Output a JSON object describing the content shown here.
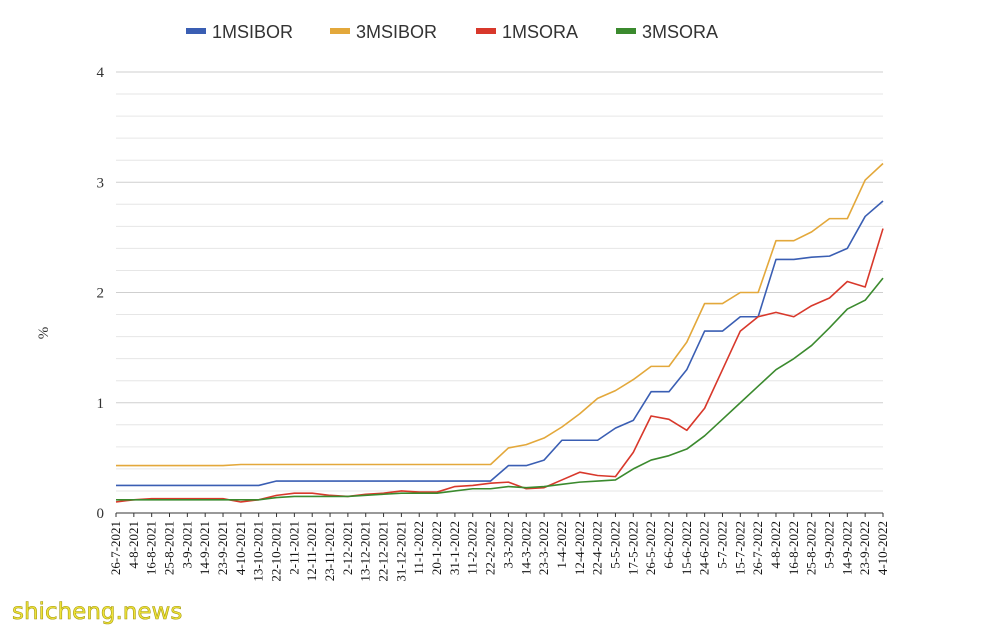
{
  "chart_data": {
    "type": "line",
    "ylabel": "%",
    "ylim": [
      0,
      4
    ],
    "yticks": [
      0,
      1,
      2,
      3,
      4
    ],
    "grid": true,
    "legend_position": "top",
    "x_tick_labels": [
      "26-7-2021",
      "4-8-2021",
      "16-8-2021",
      "25-8-2021",
      "3-9-2021",
      "14-9-2021",
      "23-9-2021",
      "4-10-2021",
      "13-10-2021",
      "22-10-2021",
      "2-11-2021",
      "12-11-2021",
      "23-11-2021",
      "2-12-2021",
      "13-12-2021",
      "22-12-2021",
      "31-12-2021",
      "11-1-2022",
      "20-1-2022",
      "31-1-2022",
      "11-2-2022",
      "22-2-2022",
      "3-3-2022",
      "14-3-2022",
      "23-3-2022",
      "1-4-2022",
      "12-4-2022",
      "22-4-2022",
      "5-5-2022",
      "17-5-2022",
      "26-5-2022",
      "6-6-2022",
      "15-6-2022",
      "24-6-2022",
      "5-7-2022",
      "15-7-2022",
      "26-7-2022",
      "4-8-2022",
      "16-8-2022",
      "25-8-2022",
      "5-9-2022",
      "14-9-2022",
      "23-9-2022",
      "4-10-2022"
    ],
    "series": [
      {
        "name": "1MSIBOR",
        "color": "#3a5eb3",
        "values": [
          0.25,
          0.25,
          0.25,
          0.25,
          0.25,
          0.25,
          0.25,
          0.25,
          0.25,
          0.29,
          0.29,
          0.29,
          0.29,
          0.29,
          0.29,
          0.29,
          0.29,
          0.29,
          0.29,
          0.29,
          0.29,
          0.29,
          0.43,
          0.43,
          0.48,
          0.66,
          0.66,
          0.66,
          0.77,
          0.84,
          1.1,
          1.1,
          1.3,
          1.65,
          1.65,
          1.78,
          1.78,
          2.3,
          2.3,
          2.32,
          2.33,
          2.4,
          2.69,
          2.83
        ]
      },
      {
        "name": "3MSIBOR",
        "color": "#e3a83b",
        "values": [
          0.43,
          0.43,
          0.43,
          0.43,
          0.43,
          0.43,
          0.43,
          0.44,
          0.44,
          0.44,
          0.44,
          0.44,
          0.44,
          0.44,
          0.44,
          0.44,
          0.44,
          0.44,
          0.44,
          0.44,
          0.44,
          0.44,
          0.59,
          0.62,
          0.68,
          0.78,
          0.9,
          1.04,
          1.11,
          1.21,
          1.33,
          1.33,
          1.55,
          1.9,
          1.9,
          2.0,
          2.0,
          2.47,
          2.47,
          2.55,
          2.67,
          2.67,
          3.02,
          3.17
        ]
      },
      {
        "name": "1MSORA",
        "color": "#d8382b",
        "values": [
          0.1,
          0.12,
          0.13,
          0.13,
          0.13,
          0.13,
          0.13,
          0.1,
          0.12,
          0.16,
          0.18,
          0.18,
          0.16,
          0.15,
          0.17,
          0.18,
          0.2,
          0.19,
          0.19,
          0.24,
          0.25,
          0.27,
          0.28,
          0.22,
          0.23,
          0.3,
          0.37,
          0.34,
          0.33,
          0.55,
          0.88,
          0.85,
          0.75,
          0.95,
          1.3,
          1.65,
          1.78,
          1.82,
          1.78,
          1.88,
          1.95,
          2.1,
          2.05,
          2.58
        ]
      },
      {
        "name": "3MSORA",
        "color": "#3b8a2e",
        "values": [
          0.12,
          0.12,
          0.12,
          0.12,
          0.12,
          0.12,
          0.12,
          0.12,
          0.12,
          0.14,
          0.15,
          0.15,
          0.15,
          0.15,
          0.16,
          0.17,
          0.18,
          0.18,
          0.18,
          0.2,
          0.22,
          0.22,
          0.24,
          0.23,
          0.24,
          0.26,
          0.28,
          0.29,
          0.3,
          0.4,
          0.48,
          0.52,
          0.58,
          0.7,
          0.85,
          1.0,
          1.15,
          1.3,
          1.4,
          1.52,
          1.68,
          1.85,
          1.93,
          2.13
        ]
      }
    ]
  },
  "watermark": "shicheng.news"
}
